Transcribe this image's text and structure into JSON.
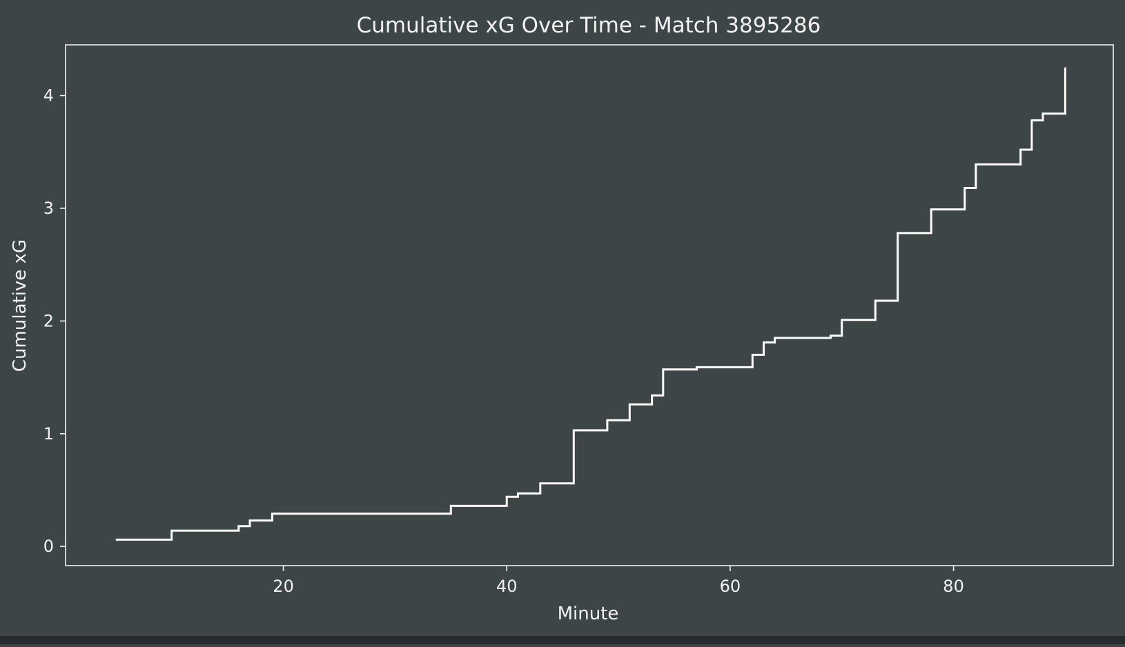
{
  "chart_data": {
    "type": "line",
    "step": "post",
    "title": "Cumulative xG Over Time - Match 3895286",
    "xlabel": "Minute",
    "ylabel": "Cumulative xG",
    "xlim": [
      0.5,
      94.3
    ],
    "ylim": [
      -0.17,
      4.45
    ],
    "xticks": [
      20,
      40,
      60,
      80
    ],
    "yticks": [
      0,
      1,
      2,
      3,
      4
    ],
    "grid": false,
    "legend": "none",
    "colors": {
      "background": "#3e4546",
      "line": "#ffffff",
      "text": "#f2f2f2",
      "axes": "#f2f2f2"
    },
    "series": [
      {
        "x": [
          5,
          10,
          16,
          17,
          19,
          35,
          40,
          41,
          43,
          46,
          49,
          51,
          53,
          54,
          57,
          62,
          63,
          64,
          69,
          70,
          73,
          75,
          78,
          81,
          82,
          86,
          87,
          88,
          90,
          90
        ],
        "y": [
          0.06,
          0.14,
          0.18,
          0.23,
          0.29,
          0.36,
          0.44,
          0.47,
          0.56,
          1.03,
          1.12,
          1.26,
          1.34,
          1.57,
          1.59,
          1.7,
          1.81,
          1.85,
          1.87,
          2.01,
          2.18,
          2.78,
          2.99,
          3.18,
          3.39,
          3.52,
          3.78,
          3.84,
          3.84,
          4.25
        ]
      }
    ]
  }
}
